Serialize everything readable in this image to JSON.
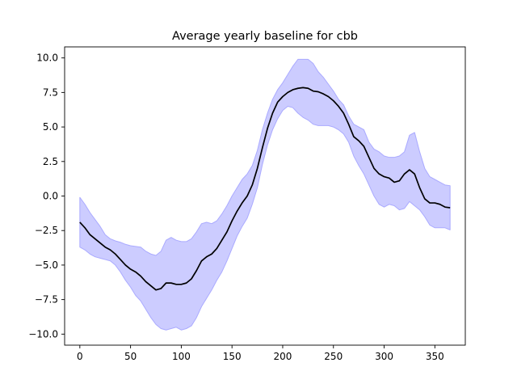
{
  "chart_data": {
    "type": "area",
    "title": "Average yearly baseline for cbb",
    "xlabel": "",
    "ylabel": "",
    "xlim": [
      -15,
      380
    ],
    "ylim": [
      -10.8,
      10.8
    ],
    "xticks": [
      0,
      50,
      100,
      150,
      200,
      250,
      300,
      350
    ],
    "yticks": [
      -10.0,
      -7.5,
      -5.0,
      -2.5,
      0.0,
      2.5,
      5.0,
      7.5,
      10.0
    ],
    "xtick_labels": [
      "0",
      "50",
      "100",
      "150",
      "200",
      "250",
      "300",
      "350"
    ],
    "ytick_labels": [
      "−10.0",
      "−7.5",
      "−5.0",
      "−2.5",
      "0.0",
      "2.5",
      "5.0",
      "7.5",
      "10.0"
    ],
    "grid": false,
    "colors": {
      "line": "#000000",
      "band_fill": "#ccccff",
      "band_edge": "#aaaaff"
    },
    "series": [
      {
        "x": [
          0,
          5,
          10,
          15,
          20,
          25,
          30,
          35,
          40,
          45,
          50,
          55,
          60,
          65,
          70,
          75,
          80,
          85,
          90,
          95,
          100,
          105,
          110,
          115,
          120,
          125,
          130,
          135,
          140,
          145,
          150,
          155,
          160,
          165,
          170,
          175,
          180,
          185,
          190,
          195,
          200,
          205,
          210,
          215,
          220,
          225,
          230,
          235,
          240,
          245,
          250,
          255,
          260,
          265,
          270,
          275,
          280,
          285,
          290,
          295,
          300,
          305,
          310,
          315,
          320,
          325,
          330,
          335,
          340,
          345,
          350,
          355,
          360,
          365
        ],
        "y": [
          -1.9,
          -2.3,
          -2.8,
          -3.1,
          -3.4,
          -3.7,
          -3.9,
          -4.2,
          -4.6,
          -5.0,
          -5.3,
          -5.5,
          -5.8,
          -6.2,
          -6.5,
          -6.8,
          -6.7,
          -6.3,
          -6.3,
          -6.4,
          -6.4,
          -6.3,
          -6.0,
          -5.4,
          -4.7,
          -4.4,
          -4.2,
          -3.8,
          -3.2,
          -2.6,
          -1.8,
          -1.1,
          -0.5,
          0.0,
          0.8,
          2.0,
          3.5,
          4.9,
          6.0,
          6.8,
          7.2,
          7.5,
          7.7,
          7.8,
          7.85,
          7.8,
          7.6,
          7.55,
          7.4,
          7.2,
          6.9,
          6.5,
          6.0,
          5.2,
          4.3,
          4.0,
          3.6,
          2.8,
          2.0,
          1.6,
          1.4,
          1.3,
          1.0,
          1.1,
          1.6,
          1.9,
          1.6,
          0.6,
          -0.2,
          -0.5,
          -0.5,
          -0.6,
          -0.8,
          -0.85
        ]
      }
    ],
    "band": {
      "upper": [
        -0.1,
        -0.6,
        -1.2,
        -1.7,
        -2.2,
        -2.8,
        -3.1,
        -3.25,
        -3.35,
        -3.5,
        -3.6,
        -3.65,
        -3.7,
        -4.0,
        -4.2,
        -4.3,
        -4.0,
        -3.2,
        -3.0,
        -3.2,
        -3.3,
        -3.3,
        -3.1,
        -2.6,
        -2.0,
        -1.9,
        -2.0,
        -1.8,
        -1.3,
        -0.7,
        0.0,
        0.6,
        1.2,
        1.6,
        2.2,
        3.3,
        4.8,
        6.0,
        7.0,
        7.7,
        8.2,
        8.8,
        9.4,
        9.9,
        9.9,
        9.9,
        9.6,
        9.0,
        8.6,
        8.1,
        7.6,
        7.0,
        6.6,
        5.8,
        5.2,
        5.0,
        4.8,
        3.9,
        3.4,
        3.2,
        2.9,
        2.8,
        2.8,
        2.9,
        3.2,
        4.4,
        4.6,
        3.2,
        2.0,
        1.4,
        1.2,
        1.0,
        0.8,
        0.75
      ],
      "lower": [
        -3.7,
        -3.9,
        -4.2,
        -4.4,
        -4.5,
        -4.6,
        -4.7,
        -5.0,
        -5.5,
        -6.1,
        -6.6,
        -7.2,
        -7.6,
        -8.2,
        -8.8,
        -9.3,
        -9.6,
        -9.7,
        -9.6,
        -9.5,
        -9.7,
        -9.6,
        -9.4,
        -8.8,
        -8.0,
        -7.4,
        -6.8,
        -6.1,
        -5.5,
        -4.7,
        -3.8,
        -2.9,
        -2.2,
        -1.6,
        -0.6,
        0.6,
        2.3,
        3.7,
        4.8,
        5.6,
        6.2,
        6.5,
        6.4,
        6.0,
        5.7,
        5.5,
        5.2,
        5.1,
        5.1,
        5.1,
        5.0,
        4.8,
        4.5,
        3.9,
        2.9,
        2.2,
        1.6,
        0.8,
        0.0,
        -0.6,
        -0.8,
        -0.6,
        -0.7,
        -1.0,
        -0.9,
        -0.4,
        -0.7,
        -1.0,
        -1.5,
        -2.1,
        -2.3,
        -2.3,
        -2.3,
        -2.45
      ]
    }
  }
}
